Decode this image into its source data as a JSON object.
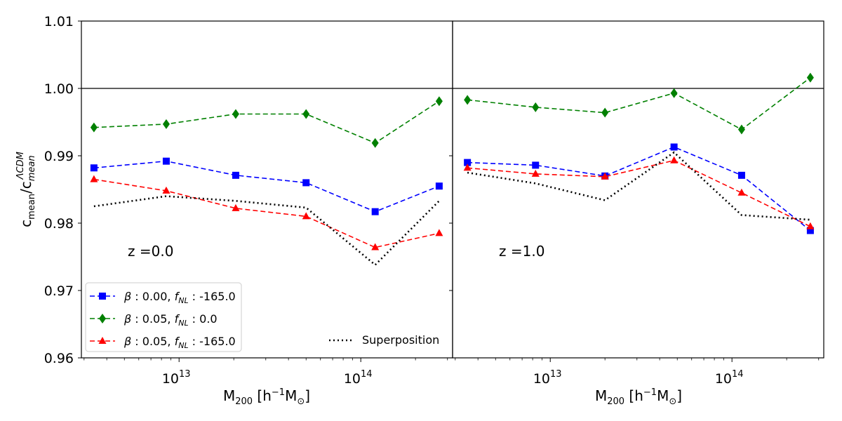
{
  "chart_data": {
    "type": "line",
    "xscale": "log",
    "ylabel": "c_mean / c_mean^ΛCDM",
    "ylabel_parts": {
      "main": "c",
      "main_sub": "mean",
      "slash": "/c",
      "sub": "mean",
      "sup": "ΛCDM"
    },
    "xlabel_parts": {
      "main": "M",
      "sub": "200",
      "open": " [h",
      "sup": "−1",
      "mid": "M",
      "sub2": "⊙",
      "close": "]"
    },
    "ylim": [
      0.96,
      1.01
    ],
    "yticks": [
      0.96,
      0.97,
      0.98,
      0.99,
      1.0,
      1.01
    ],
    "ytick_labels": [
      "0.96",
      "0.97",
      "0.98",
      "0.99",
      "1.00",
      "1.01"
    ],
    "xtick_labels": [
      {
        "value": 10000000000000.0,
        "base": "10",
        "exp": "13"
      },
      {
        "value": 100000000000000.0,
        "base": "10",
        "exp": "14"
      }
    ],
    "reference_line": 1.0,
    "series_styles": [
      {
        "name": "beta0.00_fNL-165",
        "color": "#0000ff",
        "marker": "square",
        "dash": "7,4"
      },
      {
        "name": "beta0.05_fNL0",
        "color": "#008000",
        "marker": "diamond",
        "dash": "7,4"
      },
      {
        "name": "beta0.05_fNL-165",
        "color": "#ff0000",
        "marker": "triangle",
        "dash": "7,4"
      },
      {
        "name": "superposition",
        "color": "#000000",
        "marker": "none",
        "dash": "2,4"
      }
    ],
    "legend": {
      "location": "lower-left",
      "entries": [
        {
          "style": 0,
          "beta": "0.00",
          "fnl": "-165.0"
        },
        {
          "style": 1,
          "beta": "0.05",
          "fnl": "0.0"
        },
        {
          "style": 2,
          "beta": "0.05",
          "fnl": "-165.0"
        }
      ],
      "beta_symbol": "β",
      "f_symbol": "f",
      "f_sub": "NL",
      "separator": " : ",
      "superposition_label": "Superposition"
    },
    "panels": [
      {
        "annotation": "z =0.0",
        "xlim": [
          2900000000000.0,
          320000000000000.0
        ],
        "series": [
          {
            "style": 0,
            "x": [
              3400000000000.0,
              8500000000000.0,
              20500000000000.0,
              50000000000000.0,
              120000000000000.0,
              270000000000000.0
            ],
            "y": [
              0.9882,
              0.9892,
              0.9871,
              0.986,
              0.9817,
              0.9855
            ]
          },
          {
            "style": 1,
            "x": [
              3400000000000.0,
              8500000000000.0,
              20500000000000.0,
              50000000000000.0,
              120000000000000.0,
              270000000000000.0
            ],
            "y": [
              0.9942,
              0.9947,
              0.9962,
              0.9962,
              0.9919,
              0.9981
            ]
          },
          {
            "style": 2,
            "x": [
              3400000000000.0,
              8500000000000.0,
              20500000000000.0,
              50000000000000.0,
              120000000000000.0,
              270000000000000.0
            ],
            "y": [
              0.9865,
              0.9848,
              0.9822,
              0.981,
              0.9764,
              0.9785
            ]
          },
          {
            "style": 3,
            "x": [
              3400000000000.0,
              8500000000000.0,
              20500000000000.0,
              50000000000000.0,
              120000000000000.0,
              270000000000000.0
            ],
            "y": [
              0.9825,
              0.984,
              0.9833,
              0.9823,
              0.9738,
              0.9833
            ]
          }
        ]
      },
      {
        "annotation": "z =1.0",
        "xlim": [
          2900000000000.0,
          320000000000000.0
        ],
        "series": [
          {
            "style": 0,
            "x": [
              3500000000000.0,
              8300000000000.0,
              20000000000000.0,
              48000000000000.0,
              113000000000000.0,
              270000000000000.0
            ],
            "y": [
              0.989,
              0.9886,
              0.987,
              0.9913,
              0.9871,
              0.9789
            ]
          },
          {
            "style": 1,
            "x": [
              3500000000000.0,
              8300000000000.0,
              20000000000000.0,
              48000000000000.0,
              113000000000000.0,
              270000000000000.0
            ],
            "y": [
              0.9983,
              0.9972,
              0.9964,
              0.9993,
              0.9939,
              1.0016
            ]
          },
          {
            "style": 2,
            "x": [
              3500000000000.0,
              8300000000000.0,
              20000000000000.0,
              48000000000000.0,
              113000000000000.0,
              270000000000000.0
            ],
            "y": [
              0.9882,
              0.9873,
              0.9869,
              0.9893,
              0.9845,
              0.9795
            ]
          },
          {
            "style": 3,
            "x": [
              3500000000000.0,
              8300000000000.0,
              20000000000000.0,
              48000000000000.0,
              113000000000000.0,
              270000000000000.0
            ],
            "y": [
              0.9875,
              0.9859,
              0.9834,
              0.9905,
              0.9812,
              0.9805
            ]
          }
        ]
      }
    ]
  }
}
